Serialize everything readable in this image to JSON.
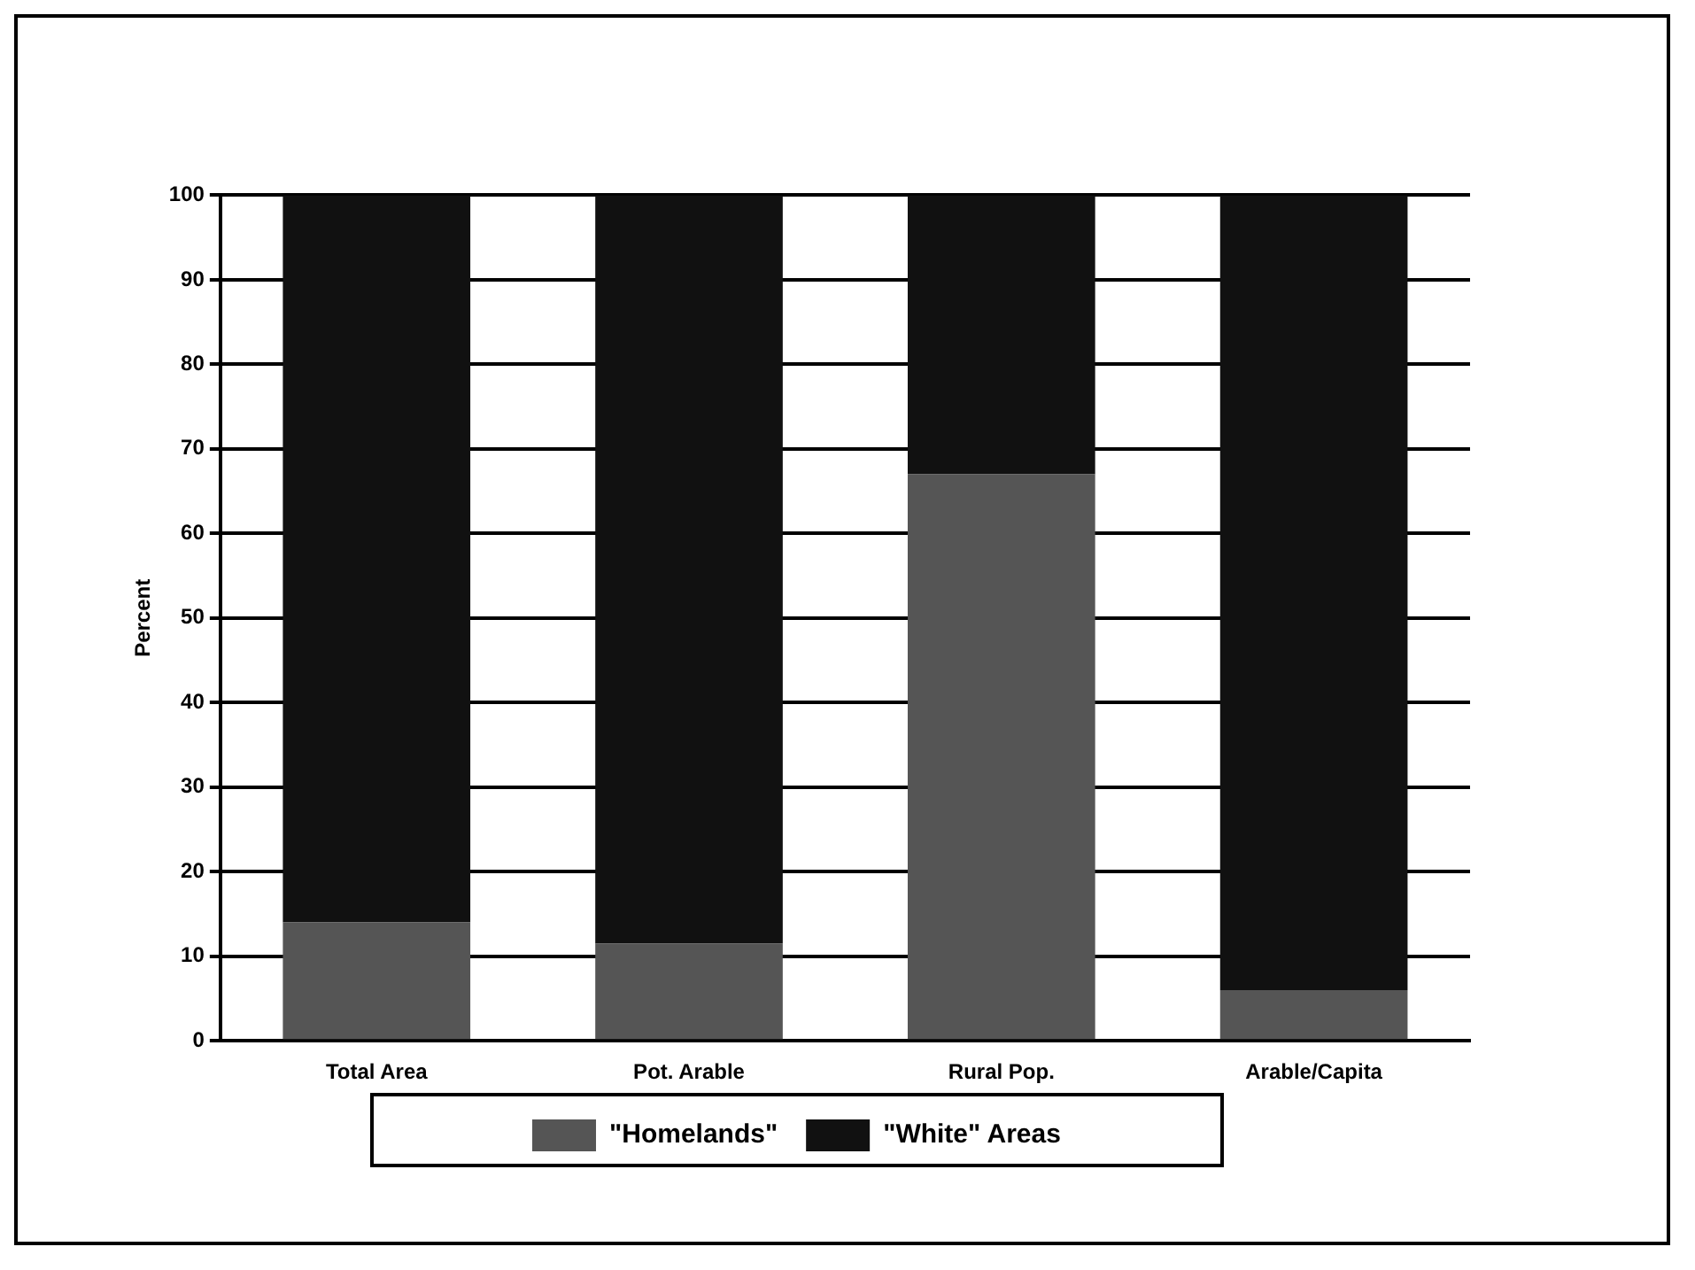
{
  "chart_data": {
    "type": "bar",
    "ylabel": "Percent",
    "categories": [
      "Total Area",
      "Pot. Arable",
      "Rural Pop.",
      "Arable/Capita"
    ],
    "stacked": true,
    "series": [
      {
        "name": "\"Homelands\"",
        "color": "#555555",
        "values": [
          14,
          11.5,
          67,
          6
        ]
      },
      {
        "name": "\"White\" Areas",
        "color": "#111111",
        "values": [
          86,
          88.5,
          33,
          94
        ]
      }
    ],
    "ylim": [
      0,
      100
    ],
    "yticks": [
      0,
      10,
      20,
      30,
      40,
      50,
      60,
      70,
      80,
      90,
      100
    ],
    "grid": "y",
    "legend": "bottom"
  }
}
